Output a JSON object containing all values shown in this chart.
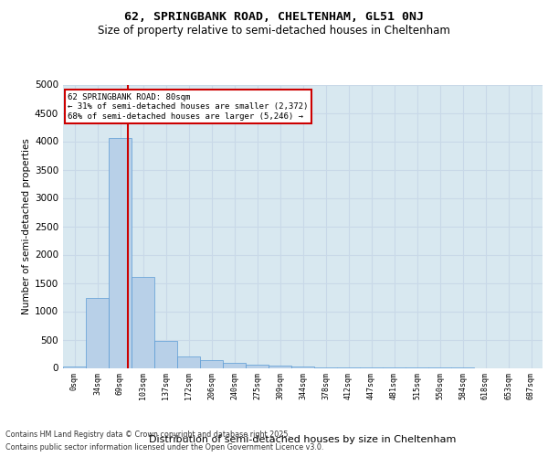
{
  "title1": "62, SPRINGBANK ROAD, CHELTENHAM, GL51 0NJ",
  "title2": "Size of property relative to semi-detached houses in Cheltenham",
  "xlabel": "Distribution of semi-detached houses by size in Cheltenham",
  "ylabel": "Number of semi-detached properties",
  "bin_labels": [
    "0sqm",
    "34sqm",
    "69sqm",
    "103sqm",
    "137sqm",
    "172sqm",
    "206sqm",
    "240sqm",
    "275sqm",
    "309sqm",
    "344sqm",
    "378sqm",
    "412sqm",
    "447sqm",
    "481sqm",
    "515sqm",
    "550sqm",
    "584sqm",
    "618sqm",
    "653sqm",
    "687sqm"
  ],
  "bar_values": [
    20,
    1230,
    4050,
    1600,
    480,
    200,
    130,
    95,
    60,
    45,
    28,
    15,
    8,
    5,
    3,
    2,
    1,
    1,
    0,
    0,
    0
  ],
  "bar_color": "#b8d0e8",
  "bar_edge_color": "#5b9bd5",
  "grid_color": "#c8d8e8",
  "background_color": "#d8e8f0",
  "subject_label": "62 SPRINGBANK ROAD: 80sqm",
  "annotation_smaller": "← 31% of semi-detached houses are smaller (2,372)",
  "annotation_larger": "68% of semi-detached houses are larger (5,246) →",
  "annotation_box_color": "#ffffff",
  "annotation_box_edge": "#cc0000",
  "subject_line_color": "#cc0000",
  "ylim": [
    0,
    5000
  ],
  "yticks": [
    0,
    500,
    1000,
    1500,
    2000,
    2500,
    3000,
    3500,
    4000,
    4500,
    5000
  ],
  "footer1": "Contains HM Land Registry data © Crown copyright and database right 2025.",
  "footer2": "Contains public sector information licensed under the Open Government Licence v3.0."
}
